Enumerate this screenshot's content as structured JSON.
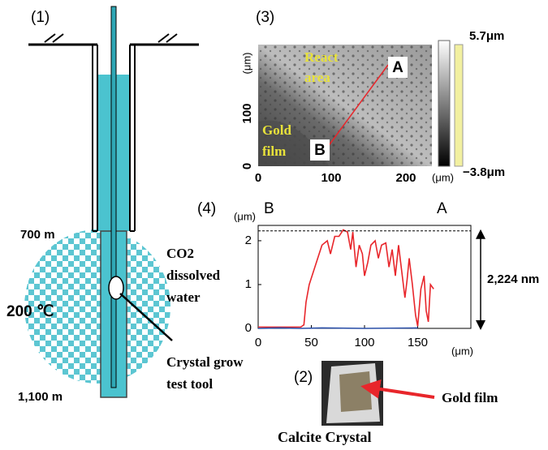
{
  "well": {
    "label": "(1)",
    "depth_top": "700 m",
    "depth_bottom": "1,100 m",
    "temperature": "200 ℃",
    "water_label": [
      "CO2",
      "dissolved",
      "water"
    ],
    "tool_label": [
      "Crystal grow",
      "test tool"
    ]
  },
  "image": {
    "label": "(3)",
    "x_ticks": [
      0,
      100,
      200
    ],
    "x_unit": "(μm)",
    "y_ticks": [
      0,
      100
    ],
    "y_unit": "(μm)",
    "colorbar_max": "5.7μm",
    "colorbar_min": "−3.8μm",
    "region_react": [
      "React",
      "area"
    ],
    "region_gold": [
      "Gold",
      "film"
    ],
    "point_a": "A",
    "point_b": "B"
  },
  "chart_data": {
    "type": "line",
    "label": "(4)",
    "y_unit": "(μm)",
    "x_unit": "(μm)",
    "left_end": "B",
    "right_end": "A",
    "xlim": [
      0,
      200
    ],
    "ylim": [
      0,
      2.35
    ],
    "xticks": [
      0,
      50,
      100,
      150
    ],
    "yticks": [
      0,
      1,
      2
    ],
    "reference": {
      "value": 2.224,
      "label": "2,224 nm"
    },
    "series": [
      {
        "color": "#e8262b",
        "x": [
          0,
          20,
          40,
          43,
          45,
          48,
          52,
          56,
          60,
          65,
          68,
          72,
          76,
          80,
          84,
          87,
          89,
          92,
          95,
          98,
          100,
          103,
          106,
          110,
          113,
          116,
          120,
          123,
          126,
          129,
          132,
          135,
          138,
          140,
          142,
          145,
          148,
          150,
          153,
          156,
          158,
          160,
          162,
          165
        ],
        "values": [
          0.03,
          0.03,
          0.03,
          0.08,
          0.6,
          1.0,
          1.3,
          1.6,
          1.9,
          2.0,
          1.7,
          2.1,
          2.1,
          2.25,
          2.2,
          1.8,
          2.2,
          1.4,
          1.9,
          1.7,
          1.2,
          1.5,
          1.9,
          2.0,
          1.6,
          1.9,
          1.95,
          1.4,
          1.8,
          1.2,
          1.9,
          1.3,
          0.7,
          1.1,
          1.6,
          1.0,
          0.3,
          0.05,
          0.9,
          1.2,
          0.4,
          0.15,
          1.0,
          0.9
        ]
      },
      {
        "color": "#2a4fa8",
        "x": [
          0,
          20,
          40,
          60,
          100,
          150
        ],
        "values": [
          0.0,
          0.01,
          0.0,
          0.01,
          0.0,
          0.01
        ]
      }
    ]
  },
  "crystal": {
    "label": "(2)",
    "film_label": "Gold film",
    "caption": "Calcite Crystal"
  }
}
